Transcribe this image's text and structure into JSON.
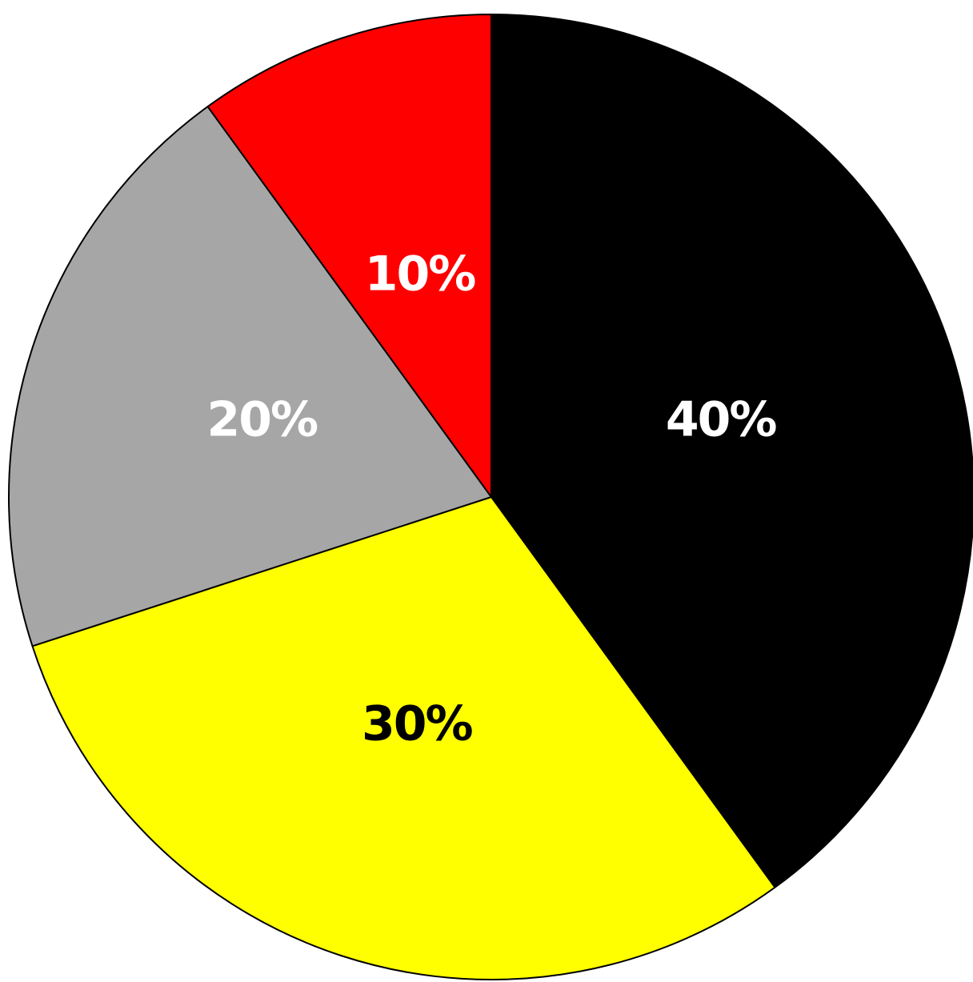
{
  "chart_data": {
    "type": "pie",
    "start_angle_deg": 0,
    "direction": "clockwise",
    "slices": [
      {
        "value": 40,
        "label": "40%",
        "color": "#000000",
        "label_color": "#ffffff"
      },
      {
        "value": 30,
        "label": "30%",
        "color": "#ffff00",
        "label_color": "#000000"
      },
      {
        "value": 20,
        "label": "20%",
        "color": "#a6a6a6",
        "label_color": "#ffffff"
      },
      {
        "value": 10,
        "label": "10%",
        "color": "#ff0000",
        "label_color": "#ffffff"
      }
    ]
  }
}
